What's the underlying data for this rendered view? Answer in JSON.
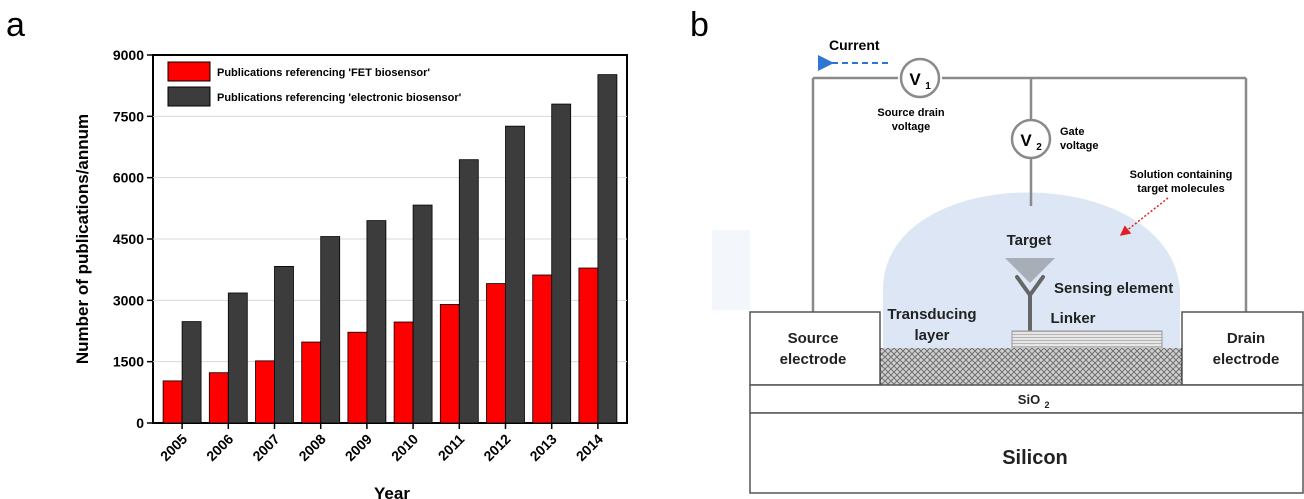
{
  "panels": {
    "a": "a",
    "b": "b"
  },
  "chart_data": {
    "type": "bar",
    "categories": [
      "2005",
      "2006",
      "2007",
      "2008",
      "2009",
      "2010",
      "2011",
      "2012",
      "2013",
      "2014"
    ],
    "series": [
      {
        "name": "Publications referencing 'FET biosensor'",
        "color": "#ff0000",
        "values": [
          1030,
          1230,
          1520,
          1980,
          2220,
          2470,
          2900,
          3410,
          3620,
          3790
        ]
      },
      {
        "name": "Publications referencing 'electronic biosensor'",
        "color": "#3c3c3c",
        "values": [
          2480,
          3180,
          3830,
          4560,
          4950,
          5330,
          6440,
          7260,
          7800,
          8520
        ]
      }
    ],
    "xlabel": "Year",
    "ylabel": "Number of publications/annum",
    "ylim": [
      0,
      9000
    ],
    "yticks": [
      "0",
      "1500",
      "3000",
      "4500",
      "6000",
      "7500",
      "9000"
    ],
    "grid": true,
    "legend": "top-left"
  },
  "diagram": {
    "current": "Current",
    "v1": "V",
    "v1_sub": "1",
    "v1_caption": [
      "Source drain",
      "voltage"
    ],
    "v2": "V",
    "v2_sub": "2",
    "v2_caption": [
      "Gate",
      "voltage"
    ],
    "solution": [
      "Solution containing",
      "target molecules"
    ],
    "target": "Target",
    "sensing": "Sensing element",
    "transducing": [
      "Transducing",
      "layer"
    ],
    "linker": "Linker",
    "source": [
      "Source",
      "electrode"
    ],
    "drain": [
      "Drain",
      "electrode"
    ],
    "sio2": "SiO",
    "sio2_sub": "2",
    "silicon": "Silicon"
  }
}
